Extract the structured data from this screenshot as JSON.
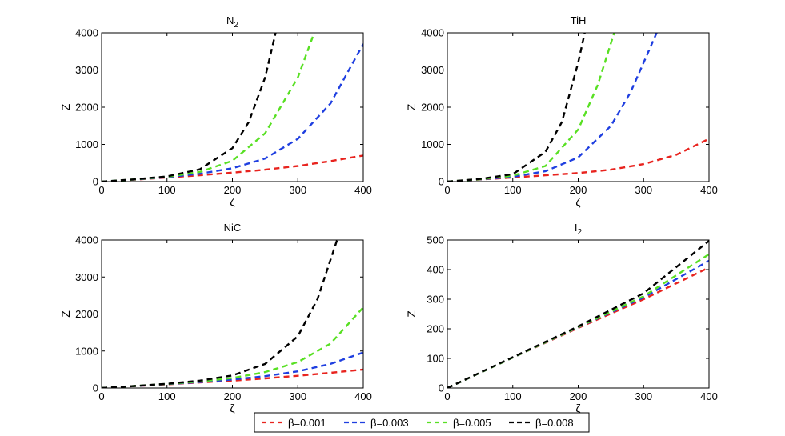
{
  "colors": {
    "red": "#e8231e",
    "blue": "#1f3fe0",
    "green": "#58e023",
    "black": "#000000"
  },
  "legend": {
    "items": [
      {
        "label": "β=0.001",
        "color": "#e8231e"
      },
      {
        "label": "β=0.003",
        "color": "#1f3fe0"
      },
      {
        "label": "β=0.005",
        "color": "#58e023"
      },
      {
        "label": "β=0.008",
        "color": "#000000"
      }
    ]
  },
  "chart_data": [
    {
      "type": "line",
      "title": "N",
      "title_subscript": "2",
      "xlabel": "ζ",
      "ylabel": "Z",
      "xlim": [
        0,
        400
      ],
      "ylim": [
        0,
        4000
      ],
      "xticks": [
        0,
        100,
        200,
        300,
        400
      ],
      "yticks": [
        0,
        1000,
        2000,
        3000,
        4000
      ],
      "series": [
        {
          "name": "β=0.001",
          "x": [
            0,
            50,
            100,
            150,
            200,
            250,
            300,
            350,
            400
          ],
          "y": [
            0,
            52,
            110,
            170,
            240,
            320,
            420,
            550,
            700
          ]
        },
        {
          "name": "β=0.003",
          "x": [
            0,
            50,
            100,
            150,
            200,
            250,
            300,
            350,
            400
          ],
          "y": [
            0,
            55,
            120,
            210,
            360,
            620,
            1150,
            2100,
            3700
          ]
        },
        {
          "name": "β=0.005",
          "x": [
            0,
            50,
            100,
            150,
            200,
            250,
            300,
            325
          ],
          "y": [
            0,
            58,
            130,
            260,
            560,
            1300,
            2800,
            4000
          ]
        },
        {
          "name": "β=0.008",
          "x": [
            0,
            50,
            100,
            150,
            200,
            225,
            250,
            266
          ],
          "y": [
            0,
            60,
            140,
            330,
            900,
            1600,
            2800,
            4000
          ]
        }
      ]
    },
    {
      "type": "line",
      "title": "TiH",
      "title_subscript": "",
      "xlabel": "ζ",
      "ylabel": "Z",
      "xlim": [
        0,
        400
      ],
      "ylim": [
        0,
        4000
      ],
      "xticks": [
        0,
        100,
        200,
        300,
        400
      ],
      "yticks": [
        0,
        1000,
        2000,
        3000,
        4000
      ],
      "series": [
        {
          "name": "β=0.001",
          "x": [
            0,
            50,
            100,
            150,
            200,
            250,
            300,
            350,
            400
          ],
          "y": [
            0,
            55,
            110,
            170,
            230,
            320,
            470,
            720,
            1150
          ]
        },
        {
          "name": "β=0.003",
          "x": [
            0,
            50,
            100,
            150,
            200,
            250,
            280,
            300,
            320
          ],
          "y": [
            0,
            60,
            130,
            280,
            650,
            1500,
            2400,
            3200,
            4000
          ]
        },
        {
          "name": "β=0.005",
          "x": [
            0,
            50,
            100,
            150,
            200,
            230,
            255
          ],
          "y": [
            0,
            65,
            160,
            420,
            1400,
            2600,
            4000
          ]
        },
        {
          "name": "β=0.008",
          "x": [
            0,
            50,
            100,
            150,
            175,
            200,
            210
          ],
          "y": [
            0,
            70,
            200,
            800,
            1600,
            3200,
            4000
          ]
        }
      ]
    },
    {
      "type": "line",
      "title": "NiC",
      "title_subscript": "",
      "xlabel": "ζ",
      "ylabel": "Z",
      "xlim": [
        0,
        400
      ],
      "ylim": [
        0,
        4000
      ],
      "xticks": [
        0,
        100,
        200,
        300,
        400
      ],
      "yticks": [
        0,
        1000,
        2000,
        3000,
        4000
      ],
      "series": [
        {
          "name": "β=0.001",
          "x": [
            0,
            50,
            100,
            150,
            200,
            250,
            300,
            350,
            400
          ],
          "y": [
            0,
            50,
            100,
            150,
            200,
            260,
            330,
            410,
            500
          ]
        },
        {
          "name": "β=0.003",
          "x": [
            0,
            50,
            100,
            150,
            200,
            250,
            300,
            350,
            400
          ],
          "y": [
            0,
            52,
            105,
            160,
            230,
            320,
            450,
            650,
            960
          ]
        },
        {
          "name": "β=0.005",
          "x": [
            0,
            50,
            100,
            150,
            200,
            250,
            300,
            350,
            400
          ],
          "y": [
            0,
            54,
            110,
            175,
            270,
            430,
            700,
            1200,
            2180
          ]
        },
        {
          "name": "β=0.008",
          "x": [
            0,
            50,
            100,
            150,
            200,
            250,
            300,
            330,
            360
          ],
          "y": [
            0,
            55,
            115,
            200,
            340,
            650,
            1400,
            2400,
            4000
          ]
        }
      ]
    },
    {
      "type": "line",
      "title": "I",
      "title_subscript": "2",
      "xlabel": "ζ",
      "ylabel": "Z",
      "xlim": [
        0,
        400
      ],
      "ylim": [
        0,
        500
      ],
      "xticks": [
        0,
        100,
        200,
        300,
        400
      ],
      "yticks": [
        0,
        100,
        200,
        300,
        400,
        500
      ],
      "series": [
        {
          "name": "β=0.001",
          "x": [
            0,
            100,
            200,
            300,
            400
          ],
          "y": [
            0,
            103,
            203,
            300,
            407
          ]
        },
        {
          "name": "β=0.003",
          "x": [
            0,
            100,
            200,
            300,
            400
          ],
          "y": [
            0,
            103,
            205,
            306,
            430
          ]
        },
        {
          "name": "β=0.005",
          "x": [
            0,
            100,
            200,
            300,
            400
          ],
          "y": [
            0,
            103,
            206,
            310,
            452
          ]
        },
        {
          "name": "β=0.008",
          "x": [
            0,
            100,
            200,
            300,
            400
          ],
          "y": [
            0,
            104,
            208,
            320,
            497
          ]
        }
      ]
    }
  ]
}
